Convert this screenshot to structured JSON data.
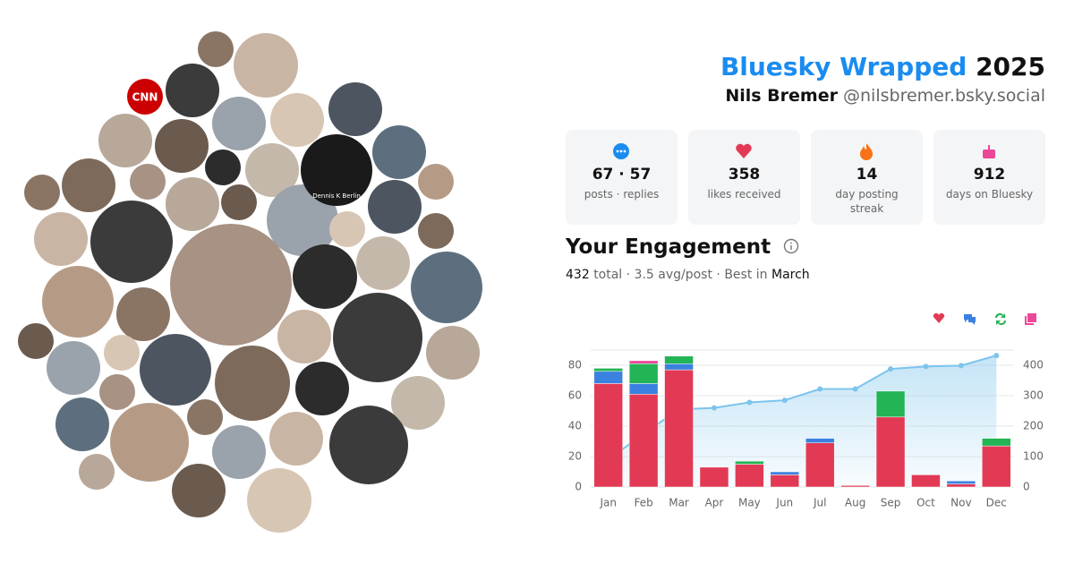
{
  "header": {
    "title": "Bluesky Wrapped",
    "year": "2025",
    "name": "Nils Bremer",
    "handle": "@nilsbremer.bsky.social"
  },
  "stats": [
    {
      "value": "67 · 57",
      "label": "posts · replies"
    },
    {
      "value": 358,
      "label": "likes received"
    },
    {
      "value": 14,
      "label": "day posting streak"
    },
    {
      "value": 912,
      "label": "days on Bluesky"
    }
  ],
  "engagement": {
    "title": "Your Engagement",
    "total": 432,
    "summary": "total · 3.5 avg/post · Best in",
    "best": "March"
  },
  "avatars": {
    "labels": [
      "CNN",
      "Dennis K Berlin"
    ]
  },
  "chart_data": {
    "type": "bar",
    "stacked": true,
    "grid": true,
    "categories": [
      "Jan",
      "Feb",
      "Mar",
      "Apr",
      "May",
      "Jun",
      "Jul",
      "Aug",
      "Sep",
      "Oct",
      "Nov",
      "Dec"
    ],
    "ylim": [
      0,
      90
    ],
    "yticks": [
      0,
      20,
      40,
      60,
      80
    ],
    "y2lim": [
      0,
      450
    ],
    "y2ticks": [
      0,
      100,
      200,
      300,
      400
    ],
    "series": [
      {
        "color": "#e23a55",
        "values": [
          68,
          61,
          77,
          13,
          15,
          8,
          29,
          1,
          46,
          8,
          2,
          27
        ]
      },
      {
        "color": "#3b82e0",
        "values": [
          8,
          7,
          4,
          0,
          0,
          2,
          3,
          0,
          0,
          0,
          2,
          0
        ]
      },
      {
        "color": "#22b455",
        "values": [
          2,
          13,
          5,
          0,
          2,
          0,
          0,
          0,
          17,
          0,
          0,
          5
        ]
      },
      {
        "color": "#ec4899",
        "values": [
          0,
          2,
          0,
          0,
          0,
          0,
          0,
          0,
          0,
          0,
          0,
          0
        ]
      },
      {
        "type": "line",
        "axis": "y2",
        "color": "#7cc4ec",
        "values": [
          90,
          175,
          255,
          260,
          278,
          285,
          322,
          322,
          388,
          396,
          399,
          432
        ]
      }
    ]
  }
}
